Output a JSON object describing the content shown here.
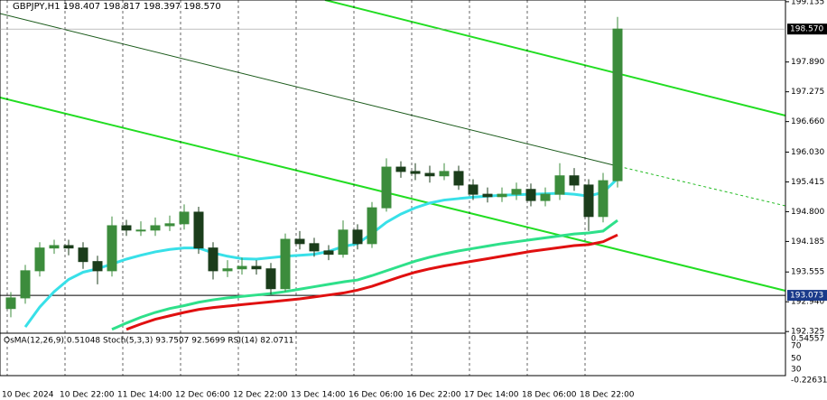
{
  "chart_data": {
    "type": "candlestick",
    "title": "GBPJPY,H1  198.407 198.817 198.397 198.570",
    "categories": [
      "10 Dec 2024",
      null,
      null,
      null,
      "10 Dec 22:00",
      null,
      null,
      null,
      "11 Dec 14:00",
      null,
      null,
      null,
      "12 Dec 06:00",
      null,
      null,
      null,
      "12 Dec 22:00",
      null,
      null,
      null,
      "13 Dec 14:00",
      null,
      null,
      null,
      "16 Dec 06:00",
      null,
      null,
      null,
      "16 Dec 22:00",
      null,
      null,
      null,
      "17 Dec 14:00",
      null,
      null,
      null,
      "18 Dec 06:00",
      null,
      null,
      null,
      "18 Dec 22:00",
      null,
      null
    ],
    "open": [
      192.8,
      193.02,
      193.58,
      194.05,
      194.1,
      194.05,
      193.77,
      193.58,
      194.51,
      194.42,
      194.42,
      194.51,
      194.55,
      194.79,
      194.05,
      193.58,
      193.62,
      193.67,
      193.62,
      193.21,
      194.23,
      194.14,
      193.99,
      193.92,
      194.42,
      194.14,
      194.88,
      195.72,
      195.63,
      195.59,
      195.54,
      195.63,
      195.35,
      195.16,
      195.11,
      195.16,
      195.26,
      195.03,
      195.16,
      195.54,
      195.35,
      194.7,
      195.44
    ],
    "high": [
      193.14,
      193.7,
      194.17,
      194.22,
      194.22,
      194.17,
      193.89,
      194.7,
      194.63,
      194.6,
      194.68,
      194.72,
      194.95,
      194.9,
      194.17,
      193.8,
      193.85,
      193.8,
      193.74,
      194.35,
      194.4,
      194.26,
      194.11,
      194.62,
      194.54,
      195.0,
      195.9,
      195.84,
      195.8,
      195.75,
      195.8,
      195.75,
      195.47,
      195.3,
      195.3,
      195.4,
      195.38,
      195.3,
      195.8,
      195.7,
      195.47,
      195.6,
      198.82
    ],
    "low": [
      192.62,
      192.9,
      193.46,
      193.93,
      193.9,
      193.62,
      193.3,
      193.46,
      194.3,
      194.3,
      194.3,
      194.4,
      194.43,
      193.93,
      193.4,
      193.45,
      193.5,
      193.5,
      193.09,
      193.15,
      194.02,
      193.87,
      193.8,
      193.85,
      194.02,
      194.05,
      194.8,
      195.5,
      195.45,
      195.4,
      195.45,
      195.25,
      195.04,
      194.99,
      195.0,
      195.04,
      194.91,
      194.91,
      195.04,
      195.23,
      194.4,
      194.58,
      195.3
    ],
    "close": [
      193.02,
      193.58,
      194.05,
      194.1,
      194.05,
      193.77,
      193.58,
      194.51,
      194.42,
      194.42,
      194.51,
      194.55,
      194.79,
      194.05,
      193.58,
      193.62,
      193.67,
      193.62,
      193.21,
      194.23,
      194.14,
      193.99,
      193.92,
      194.42,
      194.14,
      194.88,
      195.72,
      195.63,
      195.59,
      195.54,
      195.63,
      195.35,
      195.16,
      195.11,
      195.16,
      195.26,
      195.03,
      195.16,
      195.54,
      195.35,
      194.7,
      195.44,
      198.57
    ],
    "up_color": "#3c8c3c",
    "down_color": "#1b3d1b",
    "series": [
      {
        "color": "#38e0e8",
        "values": [
          null,
          192.42,
          192.83,
          193.15,
          193.4,
          193.55,
          193.62,
          193.72,
          193.82,
          193.9,
          193.97,
          194.02,
          194.05,
          194.05,
          193.95,
          193.88,
          193.83,
          193.82,
          193.85,
          193.88,
          193.9,
          193.92,
          193.98,
          194.08,
          194.14,
          194.35,
          194.58,
          194.75,
          194.88,
          194.98,
          195.04,
          195.07,
          195.1,
          195.12,
          195.14,
          195.15,
          195.16,
          195.17,
          195.18,
          195.16,
          195.12,
          195.2,
          195.48
        ]
      },
      {
        "color": "#2ee08a",
        "values": [
          null,
          null,
          null,
          null,
          null,
          null,
          null,
          192.37,
          192.5,
          192.62,
          192.72,
          192.8,
          192.86,
          192.93,
          192.98,
          193.02,
          193.05,
          193.08,
          193.11,
          193.15,
          193.2,
          193.25,
          193.3,
          193.35,
          193.39,
          193.48,
          193.58,
          193.68,
          193.78,
          193.86,
          193.93,
          193.99,
          194.04,
          194.09,
          194.14,
          194.18,
          194.22,
          194.26,
          194.3,
          194.34,
          194.36,
          194.4,
          194.62
        ]
      },
      {
        "color": "#e01010",
        "values": [
          null,
          null,
          null,
          null,
          null,
          null,
          null,
          null,
          192.37,
          192.48,
          192.58,
          192.65,
          192.72,
          192.78,
          192.82,
          192.85,
          192.88,
          192.91,
          192.94,
          192.97,
          193.0,
          193.04,
          193.08,
          193.12,
          193.18,
          193.26,
          193.36,
          193.46,
          193.55,
          193.62,
          193.68,
          193.73,
          193.78,
          193.83,
          193.88,
          193.93,
          193.98,
          194.02,
          194.06,
          194.1,
          194.12,
          194.18,
          194.32
        ]
      }
    ],
    "ylim": [
      192.31,
      199.17
    ],
    "yticks": [
      199.135,
      {
        "value": 197.89,
        "label": "197.890"
      },
      197.275,
      {
        "value": 196.66,
        "label": "196.660"
      },
      {
        "value": 196.03,
        "label": "196.030"
      },
      195.415,
      {
        "value": 194.8,
        "label": "194.800"
      },
      194.185,
      193.555,
      {
        "value": 192.94,
        "label": "192.940"
      },
      192.325
    ],
    "current_price": {
      "value": 198.57,
      "label": "198.570"
    },
    "level": 193.073,
    "indicator": {
      "title": "OsMA(12,26,9) 0.51048  Stoch(5,3,3) 93.7507 92.5699  RSI(14) 82.0711",
      "ticks": [
        "0.54557",
        "70",
        "50",
        "30",
        "-0.22631"
      ]
    }
  }
}
